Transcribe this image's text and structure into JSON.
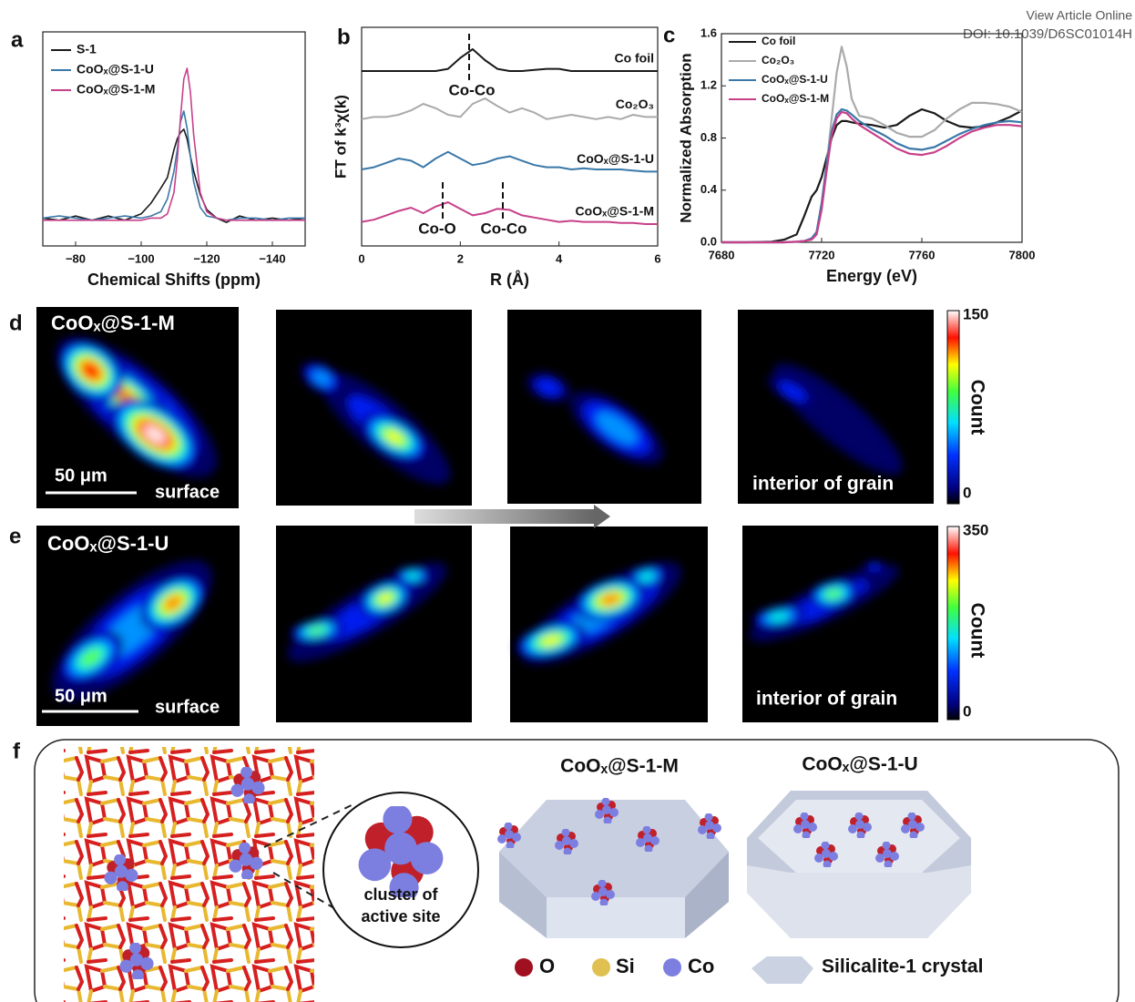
{
  "header": {
    "link": "View Article Online",
    "doi": "DOI: 10.1039/D6SC01014H"
  },
  "panel_labels": [
    "a",
    "b",
    "c",
    "d",
    "e",
    "f"
  ],
  "chart_data": [
    {
      "type": "line",
      "xlabel": "Chemical Shifts (ppm)",
      "x": [
        -70,
        -75,
        -80,
        -85,
        -90,
        -95,
        -100,
        -103,
        -106,
        -108,
        -110,
        -111,
        -112,
        -113,
        -114,
        -115,
        -116,
        -118,
        -120,
        -123,
        -126,
        -130,
        -135,
        -140,
        -145,
        -150
      ],
      "xlim": [
        -70,
        -150
      ],
      "ylim": [
        0,
        1
      ],
      "xticks": [
        {
          "value": -80,
          "label": "−80"
        },
        {
          "value": -100,
          "label": "−100"
        },
        {
          "value": -120,
          "label": "−120"
        },
        {
          "value": -140,
          "label": "−140"
        }
      ],
      "legend": "upper left",
      "series": [
        {
          "name": "S-1",
          "color": "#1a1a1a",
          "values": [
            0.13,
            0.12,
            0.14,
            0.12,
            0.14,
            0.12,
            0.15,
            0.2,
            0.27,
            0.32,
            0.45,
            0.5,
            0.53,
            0.545,
            0.5,
            0.42,
            0.35,
            0.24,
            0.17,
            0.13,
            0.11,
            0.14,
            0.12,
            0.13,
            0.12,
            0.13
          ]
        },
        {
          "name": "CoOₓ@S-1-U",
          "color": "#3a78a8",
          "values": [
            0.13,
            0.14,
            0.13,
            0.12,
            0.13,
            0.14,
            0.13,
            0.14,
            0.16,
            0.22,
            0.35,
            0.45,
            0.58,
            0.63,
            0.55,
            0.42,
            0.3,
            0.18,
            0.14,
            0.13,
            0.12,
            0.13,
            0.13,
            0.12,
            0.13,
            0.13
          ]
        },
        {
          "name": "CoOₓ@S-1-M",
          "color": "#c8408a",
          "values": [
            0.12,
            0.12,
            0.12,
            0.12,
            0.12,
            0.12,
            0.12,
            0.13,
            0.13,
            0.15,
            0.25,
            0.4,
            0.6,
            0.78,
            0.83,
            0.72,
            0.52,
            0.25,
            0.16,
            0.13,
            0.12,
            0.12,
            0.12,
            0.12,
            0.12,
            0.12
          ]
        }
      ]
    },
    {
      "type": "line",
      "xlabel": "R (Å)",
      "ylabel": "FT of k³χ(k)",
      "x": [
        0,
        0.25,
        0.5,
        0.75,
        1,
        1.25,
        1.5,
        1.75,
        2,
        2.25,
        2.5,
        2.75,
        3,
        3.25,
        3.5,
        3.75,
        4,
        4.25,
        4.5,
        4.75,
        5,
        5.25,
        5.5,
        5.75,
        6
      ],
      "xlim": [
        0,
        6
      ],
      "ylim": [
        0,
        1
      ],
      "xticks": [
        0,
        2,
        4,
        6
      ],
      "annotations": [
        "Co-Co",
        "Co-O",
        "Co-Co"
      ],
      "series": [
        {
          "name": "Co foil",
          "color": "#1a1a1a",
          "values": [
            0.8,
            0.8,
            0.8,
            0.8,
            0.8,
            0.8,
            0.8,
            0.81,
            0.86,
            0.9,
            0.85,
            0.81,
            0.8,
            0.8,
            0.805,
            0.81,
            0.81,
            0.8,
            0.8,
            0.8,
            0.8,
            0.8,
            0.8,
            0.8,
            0.8
          ]
        },
        {
          "name": "Co₂O₃",
          "color": "#aaaaaa",
          "values": [
            0.58,
            0.59,
            0.59,
            0.6,
            0.62,
            0.65,
            0.63,
            0.6,
            0.59,
            0.65,
            0.675,
            0.64,
            0.61,
            0.63,
            0.61,
            0.58,
            0.59,
            0.6,
            0.59,
            0.58,
            0.59,
            0.58,
            0.6,
            0.59,
            0.59
          ]
        },
        {
          "name": "CoOₓ@S-1-U",
          "color": "#3a78a8",
          "values": [
            0.35,
            0.36,
            0.38,
            0.4,
            0.39,
            0.36,
            0.4,
            0.43,
            0.4,
            0.37,
            0.38,
            0.4,
            0.41,
            0.39,
            0.37,
            0.36,
            0.36,
            0.35,
            0.355,
            0.35,
            0.35,
            0.35,
            0.345,
            0.34,
            0.34
          ]
        },
        {
          "name": "CoOₓ@S-1-M",
          "color": "#c8408a",
          "values": [
            0.11,
            0.12,
            0.14,
            0.16,
            0.175,
            0.15,
            0.18,
            0.2,
            0.17,
            0.14,
            0.15,
            0.17,
            0.165,
            0.14,
            0.13,
            0.12,
            0.11,
            0.115,
            0.11,
            0.11,
            0.11,
            0.105,
            0.105,
            0.1,
            0.1
          ]
        }
      ]
    },
    {
      "type": "line",
      "xlabel": "Energy (eV)",
      "ylabel": "Normalized Absorption",
      "x": [
        7680,
        7690,
        7700,
        7705,
        7710,
        7713,
        7716,
        7718,
        7720,
        7722,
        7724,
        7726,
        7728,
        7730,
        7732,
        7735,
        7740,
        7745,
        7750,
        7755,
        7760,
        7765,
        7770,
        7775,
        7780,
        7785,
        7790,
        7795,
        7800
      ],
      "xlim": [
        7680,
        7800
      ],
      "ylim": [
        0,
        1.6
      ],
      "xticks": [
        7680,
        7720,
        7760,
        7800
      ],
      "yticks": [
        {
          "value": 0,
          "label": "0.0"
        },
        0.4,
        0.8,
        1.2,
        1.6
      ],
      "legend": "upper left",
      "series": [
        {
          "name": "Co foil",
          "color": "#1a1a1a",
          "values": [
            0,
            0,
            0.005,
            0.02,
            0.06,
            0.2,
            0.35,
            0.4,
            0.5,
            0.65,
            0.8,
            0.9,
            0.93,
            0.93,
            0.92,
            0.91,
            0.9,
            0.88,
            0.9,
            0.97,
            1.02,
            0.99,
            0.93,
            0.89,
            0.88,
            0.89,
            0.92,
            0.96,
            1.01
          ]
        },
        {
          "name": "Co₂O₃",
          "color": "#aaaaaa",
          "values": [
            0,
            0,
            0,
            0,
            0.005,
            0.01,
            0.03,
            0.08,
            0.3,
            0.6,
            0.95,
            1.3,
            1.5,
            1.35,
            1.1,
            0.97,
            0.95,
            0.9,
            0.84,
            0.81,
            0.81,
            0.86,
            0.95,
            1.02,
            1.07,
            1.07,
            1.06,
            1.04,
            1.0
          ]
        },
        {
          "name": "CoOₓ@S-1-U",
          "color": "#3a78a8",
          "values": [
            0,
            0,
            0,
            0,
            0.005,
            0.01,
            0.03,
            0.08,
            0.3,
            0.6,
            0.85,
            0.98,
            1.02,
            1.01,
            0.98,
            0.93,
            0.87,
            0.82,
            0.76,
            0.72,
            0.71,
            0.73,
            0.78,
            0.83,
            0.87,
            0.9,
            0.92,
            0.93,
            0.92
          ]
        },
        {
          "name": "CoOₓ@S-1-M",
          "color": "#c8408a",
          "values": [
            0,
            0,
            0,
            0,
            0.005,
            0.01,
            0.02,
            0.06,
            0.25,
            0.55,
            0.82,
            0.95,
            1.0,
            0.99,
            0.95,
            0.9,
            0.84,
            0.78,
            0.72,
            0.68,
            0.67,
            0.69,
            0.74,
            0.8,
            0.85,
            0.88,
            0.9,
            0.9,
            0.89
          ]
        }
      ]
    }
  ],
  "panel_d": {
    "title": "CoOₓ@S-1-M",
    "scale_bar": "50 μm",
    "surface": "surface",
    "interior": "interior of grain",
    "colorbar_max": 150,
    "colorbar_min": 0,
    "colorbar_label": "Count"
  },
  "panel_e": {
    "title": "CoOₓ@S-1-U",
    "scale_bar": "50 μm",
    "surface": "surface",
    "interior": "interior of grain",
    "colorbar_max": 350,
    "colorbar_min": 0,
    "colorbar_label": "Count"
  },
  "panel_f": {
    "label_m": "CoOₓ@S-1-M",
    "label_u": "CoOₓ@S-1-U",
    "cluster": [
      "cluster of",
      "active site"
    ],
    "legend": [
      "O",
      "Si",
      "Co",
      "Silicalite-1 crystal"
    ]
  }
}
